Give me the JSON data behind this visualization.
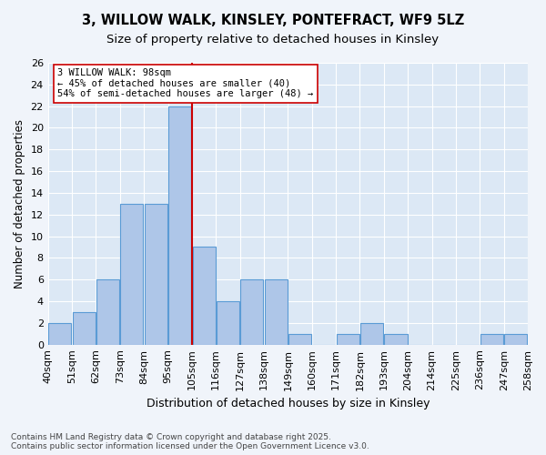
{
  "title_line1": "3, WILLOW WALK, KINSLEY, PONTEFRACT, WF9 5LZ",
  "title_line2": "Size of property relative to detached houses in Kinsley",
  "xlabel": "Distribution of detached houses by size in Kinsley",
  "ylabel": "Number of detached properties",
  "bins": [
    "40sqm",
    "51sqm",
    "62sqm",
    "73sqm",
    "84sqm",
    "95sqm",
    "105sqm",
    "116sqm",
    "127sqm",
    "138sqm",
    "149sqm",
    "160sqm",
    "171sqm",
    "182sqm",
    "193sqm",
    "204sqm",
    "214sqm",
    "225sqm",
    "236sqm",
    "247sqm",
    "258sqm"
  ],
  "values": [
    2,
    3,
    6,
    13,
    13,
    22,
    9,
    4,
    6,
    6,
    1,
    0,
    1,
    2,
    1,
    0,
    0,
    0,
    1,
    1
  ],
  "bar_color": "#aec6e8",
  "bar_edge_color": "#5a9bd5",
  "vline_x": 5.5,
  "vline_color": "#cc0000",
  "annotation_text": "3 WILLOW WALK: 98sqm\n← 45% of detached houses are smaller (40)\n54% of semi-detached houses are larger (48) →",
  "annotation_box_color": "#ffffff",
  "annotation_box_edge": "#cc0000",
  "footnote": "Contains HM Land Registry data © Crown copyright and database right 2025.\nContains public sector information licensed under the Open Government Licence v3.0.",
  "fig_bg_color": "#f0f4fa",
  "ax_bg_color": "#dce8f5",
  "ylim": [
    0,
    26
  ],
  "yticks": [
    0,
    2,
    4,
    6,
    8,
    10,
    12,
    14,
    16,
    18,
    20,
    22,
    24,
    26
  ]
}
